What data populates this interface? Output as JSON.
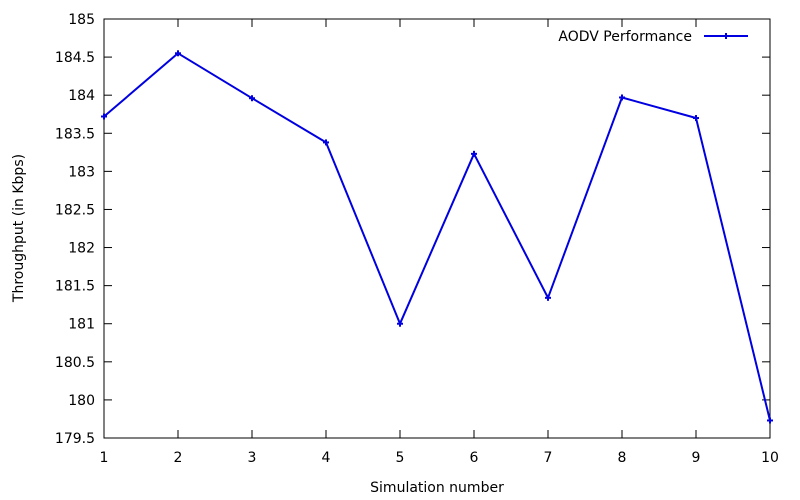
{
  "chart_data": {
    "type": "line",
    "title": "",
    "xlabel": "Simulation number",
    "ylabel": "Throughput (in Kbps)",
    "xlim": [
      1,
      10
    ],
    "ylim": [
      179.5,
      185
    ],
    "x_ticks": [
      "1",
      "2",
      "3",
      "4",
      "5",
      "6",
      "7",
      "8",
      "9",
      "10"
    ],
    "y_ticks": [
      "179.5",
      "180",
      "180.5",
      "181",
      "181.5",
      "182",
      "182.5",
      "183",
      "183.5",
      "184",
      "184.5",
      "185"
    ],
    "grid": false,
    "legend_position": "top-right",
    "series": [
      {
        "name": "AODV Performance",
        "color": "#0000e0",
        "marker": "plus",
        "x": [
          1,
          2,
          3,
          4,
          5,
          6,
          7,
          8,
          9,
          10
        ],
        "y": [
          183.72,
          184.55,
          183.96,
          183.38,
          181.0,
          183.23,
          181.34,
          183.97,
          183.7,
          179.73
        ]
      }
    ]
  }
}
